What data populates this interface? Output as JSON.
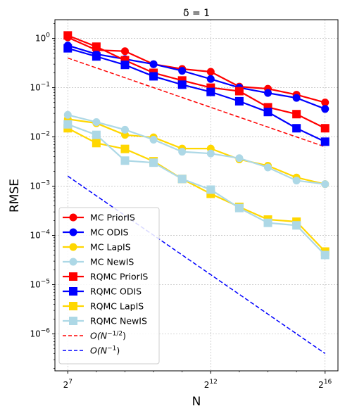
{
  "chart_data": {
    "type": "line",
    "title": "δ = 1",
    "xlabel": "N",
    "ylabel": "RMSE",
    "xscale": "log2",
    "yscale": "log10",
    "xlim_log2": [
      6.55,
      16.45
    ],
    "ylim_log10": [
      -6.75,
      0.38
    ],
    "grid": true,
    "legend_position": "lower left",
    "x_ticks": [
      {
        "exp": 7,
        "base": "2",
        "sup": "7"
      },
      {
        "exp": 12,
        "base": "2",
        "sup": "12"
      },
      {
        "exp": 16,
        "base": "2",
        "sup": "16"
      }
    ],
    "y_ticks": [
      {
        "exp": 0,
        "base": "10",
        "sup": "0"
      },
      {
        "exp": -1,
        "base": "10",
        "sup": "−1"
      },
      {
        "exp": -2,
        "base": "10",
        "sup": "−2"
      },
      {
        "exp": -3,
        "base": "10",
        "sup": "−3"
      },
      {
        "exp": -4,
        "base": "10",
        "sup": "−4"
      },
      {
        "exp": -5,
        "base": "10",
        "sup": "−5"
      },
      {
        "exp": -6,
        "base": "10",
        "sup": "−6"
      }
    ],
    "x_log2": [
      7,
      8,
      9,
      10,
      11,
      12,
      13,
      14,
      15,
      16
    ],
    "series": [
      {
        "name": "MC PriorIS",
        "color": "#ff0000",
        "marker": "circle",
        "values": [
          1.05,
          0.58,
          0.55,
          0.3,
          0.24,
          0.21,
          0.105,
          0.095,
          0.072,
          0.05
        ]
      },
      {
        "name": "MC ODIS",
        "color": "#0000ff",
        "marker": "circle",
        "values": [
          0.72,
          0.48,
          0.38,
          0.3,
          0.22,
          0.15,
          0.1,
          0.078,
          0.062,
          0.037
        ]
      },
      {
        "name": "MC LapIS",
        "color": "#ffd700",
        "marker": "circle",
        "values": [
          0.023,
          0.019,
          0.011,
          0.0098,
          0.0058,
          0.0058,
          0.0035,
          0.0026,
          0.0015,
          0.0011
        ]
      },
      {
        "name": "MC NewIS",
        "color": "#add8e6",
        "marker": "circle",
        "values": [
          0.028,
          0.02,
          0.014,
          0.0088,
          0.005,
          0.0046,
          0.0037,
          0.0024,
          0.0013,
          0.0011
        ]
      },
      {
        "name": "RQMC PriorIS",
        "color": "#ff0000",
        "marker": "square",
        "values": [
          1.15,
          0.68,
          0.36,
          0.2,
          0.14,
          0.1,
          0.085,
          0.04,
          0.029,
          0.015
        ]
      },
      {
        "name": "RQMC ODIS",
        "color": "#0000ff",
        "marker": "square",
        "values": [
          0.63,
          0.43,
          0.29,
          0.17,
          0.115,
          0.082,
          0.053,
          0.032,
          0.015,
          0.008
        ]
      },
      {
        "name": "RQMC LapIS",
        "color": "#ffd700",
        "marker": "square",
        "values": [
          0.015,
          0.0075,
          0.0057,
          0.0032,
          0.0014,
          0.0007,
          0.00038,
          0.00021,
          0.00019,
          4.7e-05
        ]
      },
      {
        "name": "RQMC NewIS",
        "color": "#add8e6",
        "marker": "square",
        "values": [
          0.018,
          0.011,
          0.0033,
          0.003,
          0.0014,
          0.00085,
          0.00036,
          0.00018,
          0.00016,
          4e-05
        ]
      }
    ],
    "reference_lines": [
      {
        "name": "O(N^{-1/2})",
        "label_main": "O(N",
        "label_sup": "−1/2",
        "label_close": ")",
        "color": "#ff0000",
        "style": "dashed",
        "x_log2": [
          7,
          16
        ],
        "values": [
          0.4,
          0.0063
        ]
      },
      {
        "name": "O(N^{-1})",
        "label_main": "O(N",
        "label_sup": "−1",
        "label_close": ")",
        "color": "#0000ff",
        "style": "dashed",
        "x_log2": [
          7,
          16
        ],
        "values": [
          0.0016,
          4e-07
        ]
      }
    ]
  }
}
